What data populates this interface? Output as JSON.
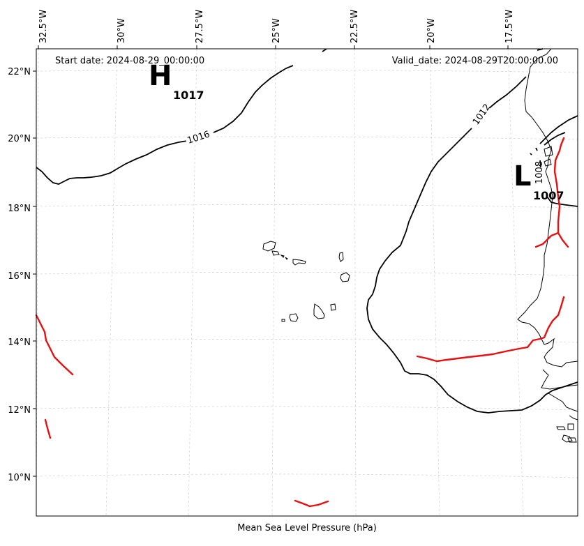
{
  "header": {
    "start_date": "Start date: 2024-08-29_00:00:00",
    "valid_date": "Valid_date: 2024-08-29T20:00:00.00"
  },
  "caption": "Mean Sea Level Pressure (hPa)",
  "lon_labels": [
    "32.5°W",
    "30°W",
    "27.5°W",
    "25°W",
    "22.5°W",
    "20°W",
    "17.5°W"
  ],
  "lat_labels": [
    "22°N",
    "20°N",
    "18°N",
    "16°N",
    "14°N",
    "12°N",
    "10°N"
  ],
  "pressure_centers": {
    "high": {
      "letter": "H",
      "value": "1017"
    },
    "low": {
      "letter": "L",
      "value": "1007"
    }
  },
  "isobar_labels": [
    "1016",
    "1012",
    "1008"
  ],
  "colors": {
    "isobar": "#000000",
    "front": "#e81010",
    "grid": "#cccccc"
  }
}
